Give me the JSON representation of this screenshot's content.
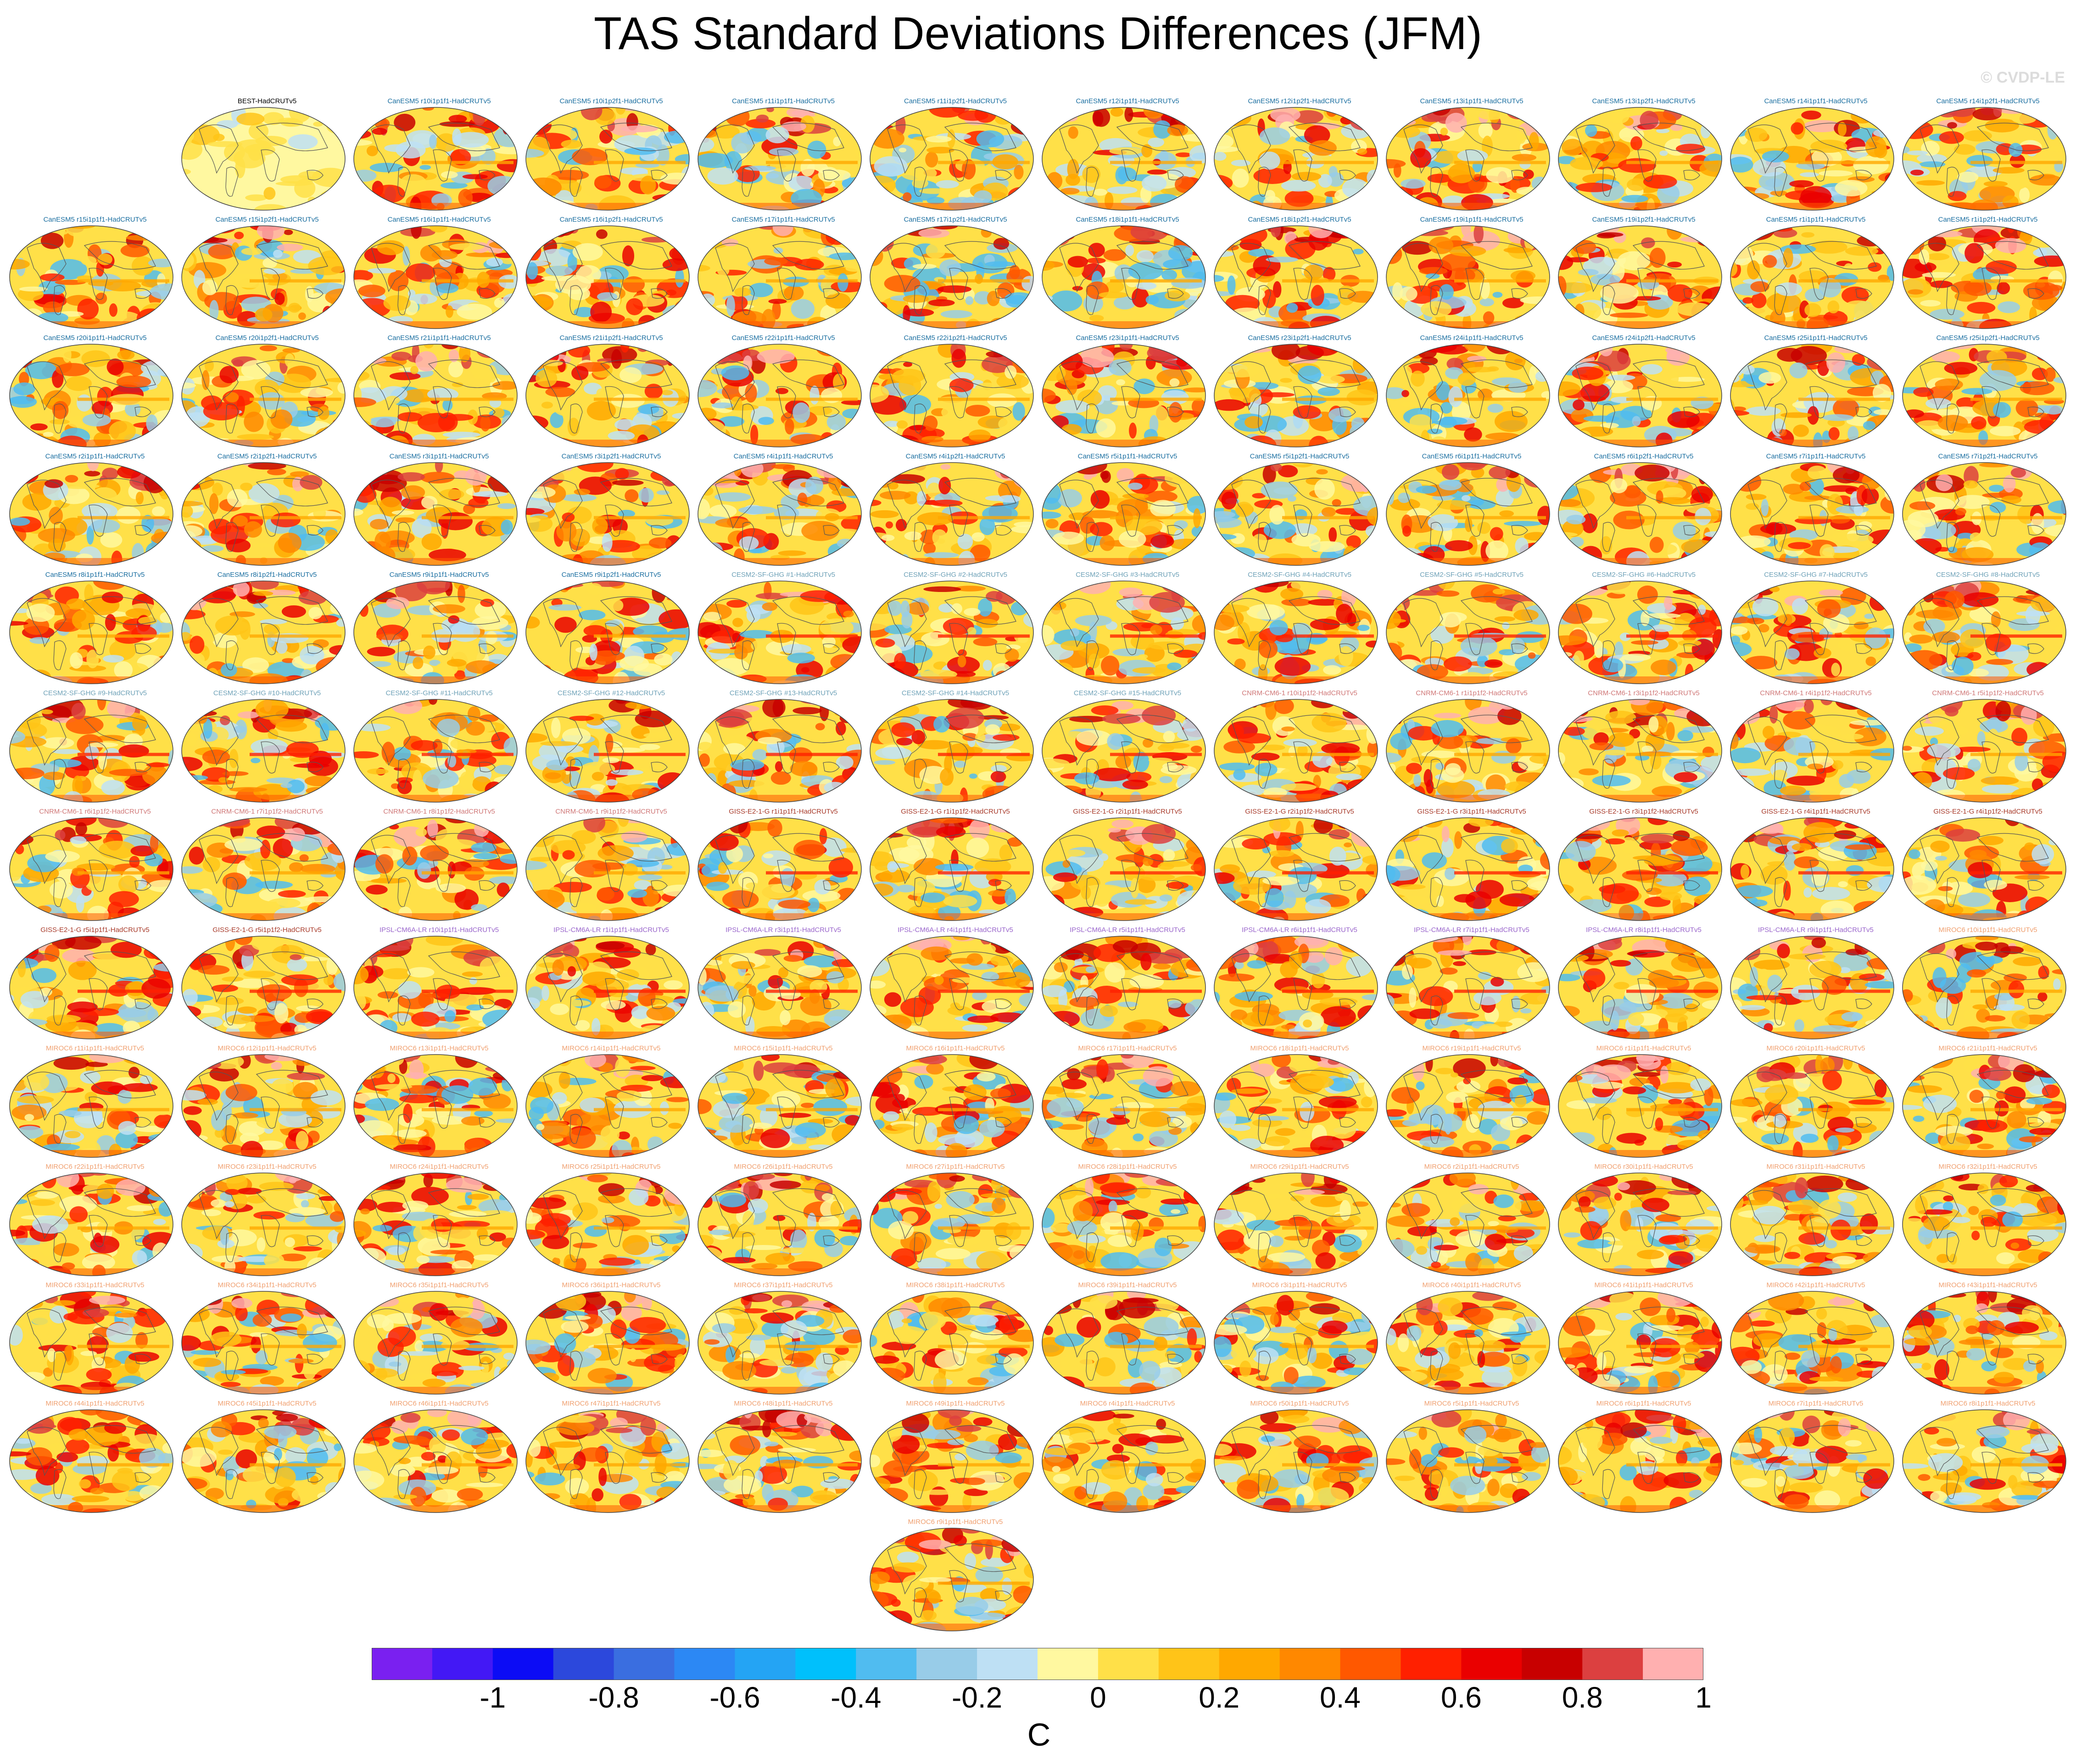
{
  "title": "TAS Standard Deviations Differences (JFM)",
  "watermark": "© CVDP-LE",
  "colorbar": {
    "colors": [
      "#7a20f0",
      "#4318f5",
      "#0c0cf5",
      "#2c48dc",
      "#3a6ee0",
      "#2c88f4",
      "#24a4f4",
      "#00c0fc",
      "#50bcf0",
      "#98cce8",
      "#bee0f4",
      "#fff8a0",
      "#ffe048",
      "#ffc418",
      "#ffa800",
      "#ff8800",
      "#ff5800",
      "#ff2000",
      "#ea0000",
      "#c80000",
      "#dc4040",
      "#ffb0b0"
    ],
    "tick_labels": [
      "-1",
      "-0.8",
      "-0.6",
      "-0.4",
      "-0.2",
      "0",
      "0.2",
      "0.4",
      "0.6",
      "0.8",
      "1"
    ],
    "units": "C"
  },
  "model_colors": {
    "BEST": "#000000",
    "CanESM5": "#1a6ea0",
    "CESM2-SF-GHG": "#6fa2b8",
    "CNRM-CM6-1": "#d07878",
    "GISS-E2-1-G": "#a83a2a",
    "IPSL-CM6A-LR": "#9a66cc",
    "MIROC6": "#f0a070"
  },
  "panels": [
    {
      "label": "BEST-HadCRUTv5",
      "model": "BEST"
    },
    {
      "label": "CanESM5 r10i1p1f1-HadCRUTv5",
      "model": "CanESM5"
    },
    {
      "label": "CanESM5 r10i1p2f1-HadCRUTv5",
      "model": "CanESM5"
    },
    {
      "label": "CanESM5 r11i1p1f1-HadCRUTv5",
      "model": "CanESM5"
    },
    {
      "label": "CanESM5 r11i1p2f1-HadCRUTv5",
      "model": "CanESM5"
    },
    {
      "label": "CanESM5 r12i1p1f1-HadCRUTv5",
      "model": "CanESM5"
    },
    {
      "label": "CanESM5 r12i1p2f1-HadCRUTv5",
      "model": "CanESM5"
    },
    {
      "label": "CanESM5 r13i1p1f1-HadCRUTv5",
      "model": "CanESM5"
    },
    {
      "label": "CanESM5 r13i1p2f1-HadCRUTv5",
      "model": "CanESM5"
    },
    {
      "label": "CanESM5 r14i1p1f1-HadCRUTv5",
      "model": "CanESM5"
    },
    {
      "label": "CanESM5 r14i1p2f1-HadCRUTv5",
      "model": "CanESM5"
    },
    {
      "label": "CanESM5 r15i1p1f1-HadCRUTv5",
      "model": "CanESM5"
    },
    {
      "label": "CanESM5 r15i1p2f1-HadCRUTv5",
      "model": "CanESM5"
    },
    {
      "label": "CanESM5 r16i1p1f1-HadCRUTv5",
      "model": "CanESM5"
    },
    {
      "label": "CanESM5 r16i1p2f1-HadCRUTv5",
      "model": "CanESM5"
    },
    {
      "label": "CanESM5 r17i1p1f1-HadCRUTv5",
      "model": "CanESM5"
    },
    {
      "label": "CanESM5 r17i1p2f1-HadCRUTv5",
      "model": "CanESM5"
    },
    {
      "label": "CanESM5 r18i1p1f1-HadCRUTv5",
      "model": "CanESM5"
    },
    {
      "label": "CanESM5 r18i1p2f1-HadCRUTv5",
      "model": "CanESM5"
    },
    {
      "label": "CanESM5 r19i1p1f1-HadCRUTv5",
      "model": "CanESM5"
    },
    {
      "label": "CanESM5 r19i1p2f1-HadCRUTv5",
      "model": "CanESM5"
    },
    {
      "label": "CanESM5 r1i1p1f1-HadCRUTv5",
      "model": "CanESM5"
    },
    {
      "label": "CanESM5 r1i1p2f1-HadCRUTv5",
      "model": "CanESM5"
    },
    {
      "label": "CanESM5 r20i1p1f1-HadCRUTv5",
      "model": "CanESM5"
    },
    {
      "label": "CanESM5 r20i1p2f1-HadCRUTv5",
      "model": "CanESM5"
    },
    {
      "label": "CanESM5 r21i1p1f1-HadCRUTv5",
      "model": "CanESM5"
    },
    {
      "label": "CanESM5 r21i1p2f1-HadCRUTv5",
      "model": "CanESM5"
    },
    {
      "label": "CanESM5 r22i1p1f1-HadCRUTv5",
      "model": "CanESM5"
    },
    {
      "label": "CanESM5 r22i1p2f1-HadCRUTv5",
      "model": "CanESM5"
    },
    {
      "label": "CanESM5 r23i1p1f1-HadCRUTv5",
      "model": "CanESM5"
    },
    {
      "label": "CanESM5 r23i1p2f1-HadCRUTv5",
      "model": "CanESM5"
    },
    {
      "label": "CanESM5 r24i1p1f1-HadCRUTv5",
      "model": "CanESM5"
    },
    {
      "label": "CanESM5 r24i1p2f1-HadCRUTv5",
      "model": "CanESM5"
    },
    {
      "label": "CanESM5 r25i1p1f1-HadCRUTv5",
      "model": "CanESM5"
    },
    {
      "label": "CanESM5 r25i1p2f1-HadCRUTv5",
      "model": "CanESM5"
    },
    {
      "label": "CanESM5 r2i1p1f1-HadCRUTv5",
      "model": "CanESM5"
    },
    {
      "label": "CanESM5 r2i1p2f1-HadCRUTv5",
      "model": "CanESM5"
    },
    {
      "label": "CanESM5 r3i1p1f1-HadCRUTv5",
      "model": "CanESM5"
    },
    {
      "label": "CanESM5 r3i1p2f1-HadCRUTv5",
      "model": "CanESM5"
    },
    {
      "label": "CanESM5 r4i1p1f1-HadCRUTv5",
      "model": "CanESM5"
    },
    {
      "label": "CanESM5 r4i1p2f1-HadCRUTv5",
      "model": "CanESM5"
    },
    {
      "label": "CanESM5 r5i1p1f1-HadCRUTv5",
      "model": "CanESM5"
    },
    {
      "label": "CanESM5 r5i1p2f1-HadCRUTv5",
      "model": "CanESM5"
    },
    {
      "label": "CanESM5 r6i1p1f1-HadCRUTv5",
      "model": "CanESM5"
    },
    {
      "label": "CanESM5 r6i1p2f1-HadCRUTv5",
      "model": "CanESM5"
    },
    {
      "label": "CanESM5 r7i1p1f1-HadCRUTv5",
      "model": "CanESM5"
    },
    {
      "label": "CanESM5 r7i1p2f1-HadCRUTv5",
      "model": "CanESM5"
    },
    {
      "label": "CanESM5 r8i1p1f1-HadCRUTv5",
      "model": "CanESM5"
    },
    {
      "label": "CanESM5 r8i1p2f1-HadCRUTv5",
      "model": "CanESM5"
    },
    {
      "label": "CanESM5 r9i1p1f1-HadCRUTv5",
      "model": "CanESM5"
    },
    {
      "label": "CanESM5 r9i1p2f1-HadCRUTv5",
      "model": "CanESM5"
    },
    {
      "label": "CESM2-SF-GHG #1-HadCRUTv5",
      "model": "CESM2-SF-GHG"
    },
    {
      "label": "CESM2-SF-GHG #2-HadCRUTv5",
      "model": "CESM2-SF-GHG"
    },
    {
      "label": "CESM2-SF-GHG #3-HadCRUTv5",
      "model": "CESM2-SF-GHG"
    },
    {
      "label": "CESM2-SF-GHG #4-HadCRUTv5",
      "model": "CESM2-SF-GHG"
    },
    {
      "label": "CESM2-SF-GHG #5-HadCRUTv5",
      "model": "CESM2-SF-GHG"
    },
    {
      "label": "CESM2-SF-GHG #6-HadCRUTv5",
      "model": "CESM2-SF-GHG"
    },
    {
      "label": "CESM2-SF-GHG #7-HadCRUTv5",
      "model": "CESM2-SF-GHG"
    },
    {
      "label": "CESM2-SF-GHG #8-HadCRUTv5",
      "model": "CESM2-SF-GHG"
    },
    {
      "label": "CESM2-SF-GHG #9-HadCRUTv5",
      "model": "CESM2-SF-GHG"
    },
    {
      "label": "CESM2-SF-GHG #10-HadCRUTv5",
      "model": "CESM2-SF-GHG"
    },
    {
      "label": "CESM2-SF-GHG #11-HadCRUTv5",
      "model": "CESM2-SF-GHG"
    },
    {
      "label": "CESM2-SF-GHG #12-HadCRUTv5",
      "model": "CESM2-SF-GHG"
    },
    {
      "label": "CESM2-SF-GHG #13-HadCRUTv5",
      "model": "CESM2-SF-GHG"
    },
    {
      "label": "CESM2-SF-GHG #14-HadCRUTv5",
      "model": "CESM2-SF-GHG"
    },
    {
      "label": "CESM2-SF-GHG #15-HadCRUTv5",
      "model": "CESM2-SF-GHG"
    },
    {
      "label": "CNRM-CM6-1 r10i1p1f2-HadCRUTv5",
      "model": "CNRM-CM6-1"
    },
    {
      "label": "CNRM-CM6-1 r1i1p1f2-HadCRUTv5",
      "model": "CNRM-CM6-1"
    },
    {
      "label": "CNRM-CM6-1 r3i1p1f2-HadCRUTv5",
      "model": "CNRM-CM6-1"
    },
    {
      "label": "CNRM-CM6-1 r4i1p1f2-HadCRUTv5",
      "model": "CNRM-CM6-1"
    },
    {
      "label": "CNRM-CM6-1 r5i1p1f2-HadCRUTv5",
      "model": "CNRM-CM6-1"
    },
    {
      "label": "CNRM-CM6-1 r6i1p1f2-HadCRUTv5",
      "model": "CNRM-CM6-1"
    },
    {
      "label": "CNRM-CM6-1 r7i1p1f2-HadCRUTv5",
      "model": "CNRM-CM6-1"
    },
    {
      "label": "CNRM-CM6-1 r8i1p1f2-HadCRUTv5",
      "model": "CNRM-CM6-1"
    },
    {
      "label": "CNRM-CM6-1 r9i1p1f2-HadCRUTv5",
      "model": "CNRM-CM6-1"
    },
    {
      "label": "GISS-E2-1-G r1i1p1f1-HadCRUTv5",
      "model": "GISS-E2-1-G"
    },
    {
      "label": "GISS-E2-1-G r1i1p1f2-HadCRUTv5",
      "model": "GISS-E2-1-G"
    },
    {
      "label": "GISS-E2-1-G r2i1p1f1-HadCRUTv5",
      "model": "GISS-E2-1-G"
    },
    {
      "label": "GISS-E2-1-G r2i1p1f2-HadCRUTv5",
      "model": "GISS-E2-1-G"
    },
    {
      "label": "GISS-E2-1-G r3i1p1f1-HadCRUTv5",
      "model": "GISS-E2-1-G"
    },
    {
      "label": "GISS-E2-1-G r3i1p1f2-HadCRUTv5",
      "model": "GISS-E2-1-G"
    },
    {
      "label": "GISS-E2-1-G r4i1p1f1-HadCRUTv5",
      "model": "GISS-E2-1-G"
    },
    {
      "label": "GISS-E2-1-G r4i1p1f2-HadCRUTv5",
      "model": "GISS-E2-1-G"
    },
    {
      "label": "GISS-E2-1-G r5i1p1f1-HadCRUTv5",
      "model": "GISS-E2-1-G"
    },
    {
      "label": "GISS-E2-1-G r5i1p1f2-HadCRUTv5",
      "model": "GISS-E2-1-G"
    },
    {
      "label": "IPSL-CM6A-LR r10i1p1f1-HadCRUTv5",
      "model": "IPSL-CM6A-LR"
    },
    {
      "label": "IPSL-CM6A-LR r1i1p1f1-HadCRUTv5",
      "model": "IPSL-CM6A-LR"
    },
    {
      "label": "IPSL-CM6A-LR r3i1p1f1-HadCRUTv5",
      "model": "IPSL-CM6A-LR"
    },
    {
      "label": "IPSL-CM6A-LR r4i1p1f1-HadCRUTv5",
      "model": "IPSL-CM6A-LR"
    },
    {
      "label": "IPSL-CM6A-LR r5i1p1f1-HadCRUTv5",
      "model": "IPSL-CM6A-LR"
    },
    {
      "label": "IPSL-CM6A-LR r6i1p1f1-HadCRUTv5",
      "model": "IPSL-CM6A-LR"
    },
    {
      "label": "IPSL-CM6A-LR r7i1p1f1-HadCRUTv5",
      "model": "IPSL-CM6A-LR"
    },
    {
      "label": "IPSL-CM6A-LR r8i1p1f1-HadCRUTv5",
      "model": "IPSL-CM6A-LR"
    },
    {
      "label": "IPSL-CM6A-LR r9i1p1f1-HadCRUTv5",
      "model": "IPSL-CM6A-LR"
    },
    {
      "label": "MIROC6 r10i1p1f1-HadCRUTv5",
      "model": "MIROC6"
    },
    {
      "label": "MIROC6 r11i1p1f1-HadCRUTv5",
      "model": "MIROC6"
    },
    {
      "label": "MIROC6 r12i1p1f1-HadCRUTv5",
      "model": "MIROC6"
    },
    {
      "label": "MIROC6 r13i1p1f1-HadCRUTv5",
      "model": "MIROC6"
    },
    {
      "label": "MIROC6 r14i1p1f1-HadCRUTv5",
      "model": "MIROC6"
    },
    {
      "label": "MIROC6 r15i1p1f1-HadCRUTv5",
      "model": "MIROC6"
    },
    {
      "label": "MIROC6 r16i1p1f1-HadCRUTv5",
      "model": "MIROC6"
    },
    {
      "label": "MIROC6 r17i1p1f1-HadCRUTv5",
      "model": "MIROC6"
    },
    {
      "label": "MIROC6 r18i1p1f1-HadCRUTv5",
      "model": "MIROC6"
    },
    {
      "label": "MIROC6 r19i1p1f1-HadCRUTv5",
      "model": "MIROC6"
    },
    {
      "label": "MIROC6 r1i1p1f1-HadCRUTv5",
      "model": "MIROC6"
    },
    {
      "label": "MIROC6 r20i1p1f1-HadCRUTv5",
      "model": "MIROC6"
    },
    {
      "label": "MIROC6 r21i1p1f1-HadCRUTv5",
      "model": "MIROC6"
    },
    {
      "label": "MIROC6 r22i1p1f1-HadCRUTv5",
      "model": "MIROC6"
    },
    {
      "label": "MIROC6 r23i1p1f1-HadCRUTv5",
      "model": "MIROC6"
    },
    {
      "label": "MIROC6 r24i1p1f1-HadCRUTv5",
      "model": "MIROC6"
    },
    {
      "label": "MIROC6 r25i1p1f1-HadCRUTv5",
      "model": "MIROC6"
    },
    {
      "label": "MIROC6 r26i1p1f1-HadCRUTv5",
      "model": "MIROC6"
    },
    {
      "label": "MIROC6 r27i1p1f1-HadCRUTv5",
      "model": "MIROC6"
    },
    {
      "label": "MIROC6 r28i1p1f1-HadCRUTv5",
      "model": "MIROC6"
    },
    {
      "label": "MIROC6 r29i1p1f1-HadCRUTv5",
      "model": "MIROC6"
    },
    {
      "label": "MIROC6 r2i1p1f1-HadCRUTv5",
      "model": "MIROC6"
    },
    {
      "label": "MIROC6 r30i1p1f1-HadCRUTv5",
      "model": "MIROC6"
    },
    {
      "label": "MIROC6 r31i1p1f1-HadCRUTv5",
      "model": "MIROC6"
    },
    {
      "label": "MIROC6 r32i1p1f1-HadCRUTv5",
      "model": "MIROC6"
    },
    {
      "label": "MIROC6 r33i1p1f1-HadCRUTv5",
      "model": "MIROC6"
    },
    {
      "label": "MIROC6 r34i1p1f1-HadCRUTv5",
      "model": "MIROC6"
    },
    {
      "label": "MIROC6 r35i1p1f1-HadCRUTv5",
      "model": "MIROC6"
    },
    {
      "label": "MIROC6 r36i1p1f1-HadCRUTv5",
      "model": "MIROC6"
    },
    {
      "label": "MIROC6 r37i1p1f1-HadCRUTv5",
      "model": "MIROC6"
    },
    {
      "label": "MIROC6 r38i1p1f1-HadCRUTv5",
      "model": "MIROC6"
    },
    {
      "label": "MIROC6 r39i1p1f1-HadCRUTv5",
      "model": "MIROC6"
    },
    {
      "label": "MIROC6 r3i1p1f1-HadCRUTv5",
      "model": "MIROC6"
    },
    {
      "label": "MIROC6 r40i1p1f1-HadCRUTv5",
      "model": "MIROC6"
    },
    {
      "label": "MIROC6 r41i1p1f1-HadCRUTv5",
      "model": "MIROC6"
    },
    {
      "label": "MIROC6 r42i1p1f1-HadCRUTv5",
      "model": "MIROC6"
    },
    {
      "label": "MIROC6 r43i1p1f1-HadCRUTv5",
      "model": "MIROC6"
    },
    {
      "label": "MIROC6 r44i1p1f1-HadCRUTv5",
      "model": "MIROC6"
    },
    {
      "label": "MIROC6 r45i1p1f1-HadCRUTv5",
      "model": "MIROC6"
    },
    {
      "label": "MIROC6 r46i1p1f1-HadCRUTv5",
      "model": "MIROC6"
    },
    {
      "label": "MIROC6 r47i1p1f1-HadCRUTv5",
      "model": "MIROC6"
    },
    {
      "label": "MIROC6 r48i1p1f1-HadCRUTv5",
      "model": "MIROC6"
    },
    {
      "label": "MIROC6 r49i1p1f1-HadCRUTv5",
      "model": "MIROC6"
    },
    {
      "label": "MIROC6 r4i1p1f1-HadCRUTv5",
      "model": "MIROC6"
    },
    {
      "label": "MIROC6 r50i1p1f1-HadCRUTv5",
      "model": "MIROC6"
    },
    {
      "label": "MIROC6 r5i1p1f1-HadCRUTv5",
      "model": "MIROC6"
    },
    {
      "label": "MIROC6 r6i1p1f1-HadCRUTv5",
      "model": "MIROC6"
    },
    {
      "label": "MIROC6 r7i1p1f1-HadCRUTv5",
      "model": "MIROC6"
    },
    {
      "label": "MIROC6 r8i1p1f1-HadCRUTv5",
      "model": "MIROC6"
    },
    {
      "label": "MIROC6 r9i1p1f1-HadCRUTv5",
      "model": "MIROC6"
    }
  ]
}
